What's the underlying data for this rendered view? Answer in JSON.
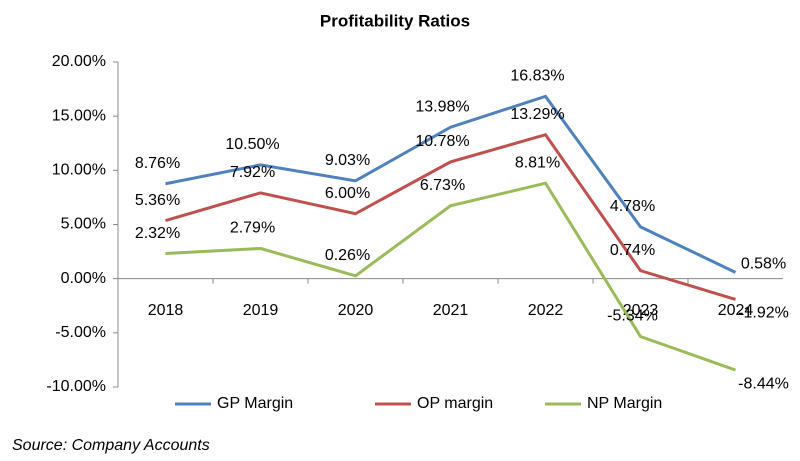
{
  "chart_data": {
    "type": "line",
    "title": "Profitability Ratios",
    "source": "Source: Company Accounts",
    "categories": [
      "2018",
      "2019",
      "2020",
      "2021",
      "2022",
      "2023",
      "2024"
    ],
    "series": [
      {
        "name": "GP Margin",
        "color": "#4f81bd",
        "values": [
          8.76,
          10.5,
          9.03,
          13.98,
          16.83,
          4.78,
          0.58
        ],
        "value_labels": [
          "8.76%",
          "10.50%",
          "9.03%",
          "13.98%",
          "16.83%",
          "4.78%",
          "0.58%"
        ]
      },
      {
        "name": "OP margin",
        "color": "#c0504d",
        "values": [
          5.36,
          7.92,
          6.0,
          10.78,
          13.29,
          0.74,
          -1.92
        ],
        "value_labels": [
          "5.36%",
          "7.92%",
          "6.00%",
          "10.78%",
          "13.29%",
          "0.74%",
          "-1.92%"
        ]
      },
      {
        "name": "NP Margin",
        "color": "#9bbb59",
        "values": [
          2.32,
          2.79,
          0.26,
          6.73,
          8.81,
          -5.34,
          -8.44
        ],
        "value_labels": [
          "2.32%",
          "2.79%",
          "0.26%",
          "6.73%",
          "8.81%",
          "-5.34%",
          "-8.44%"
        ]
      }
    ],
    "ylim": [
      -10,
      20
    ],
    "yticks": [
      {
        "value": -10,
        "label": "-10.00%"
      },
      {
        "value": -5,
        "label": "-5.00%"
      },
      {
        "value": 0,
        "label": "0.00%"
      },
      {
        "value": 5,
        "label": "5.00%"
      },
      {
        "value": 10,
        "label": "10.00%"
      },
      {
        "value": 15,
        "label": "15.00%"
      },
      {
        "value": 20,
        "label": "20.00%"
      }
    ],
    "grid": false,
    "legend": "bottom"
  }
}
